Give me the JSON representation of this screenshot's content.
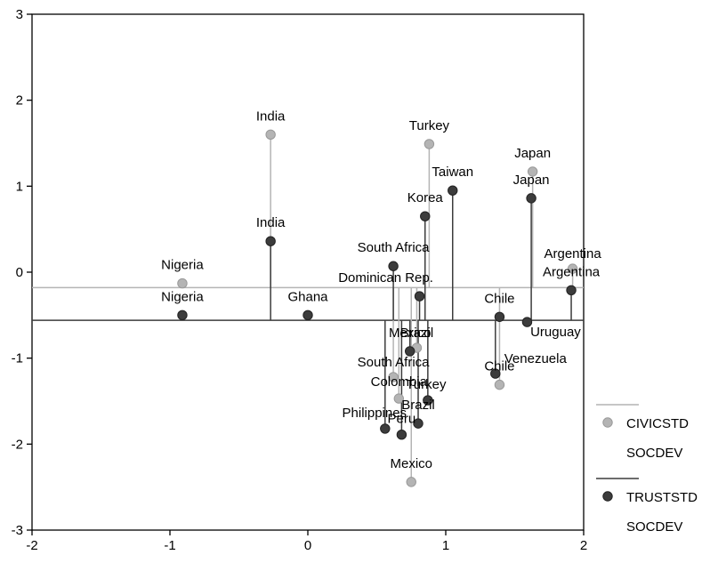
{
  "chart_data": {
    "type": "scatter",
    "title": "",
    "xlabel": "",
    "ylabel": "",
    "xlim": [
      -2,
      2
    ],
    "ylim": [
      -3,
      3
    ],
    "x_ticks": [
      -2,
      -1,
      0,
      1,
      2
    ],
    "y_ticks": [
      -3,
      -2,
      -1,
      0,
      1,
      2,
      3
    ],
    "x_tick_labels": [
      "-2",
      "-1",
      "0",
      "1",
      "2"
    ],
    "y_tick_labels": [
      "-3",
      "-2",
      "-1",
      "0",
      "1",
      "2",
      "3"
    ],
    "grid": false,
    "legend_position": "right",
    "series": [
      {
        "name": "CIVICSTD",
        "name2": "SOCDEV",
        "color": "#b4b4b4",
        "reference_y": -0.18,
        "points": [
          {
            "label": "India",
            "x": -0.27,
            "y": 1.6
          },
          {
            "label": "Nigeria",
            "x": -0.91,
            "y": -0.13
          },
          {
            "label": "Turkey",
            "x": 0.88,
            "y": 1.49
          },
          {
            "label": "Japan",
            "x": 1.63,
            "y": 1.17
          },
          {
            "label": "Argentina",
            "x": 1.92,
            "y": 0.04
          },
          {
            "label": "Brazil",
            "x": 0.79,
            "y": -0.88
          },
          {
            "label": "South Africa",
            "x": 0.62,
            "y": -1.22
          },
          {
            "label": "Colombia",
            "x": 0.66,
            "y": -1.47
          },
          {
            "label": "Chile",
            "x": 1.39,
            "y": -1.31
          },
          {
            "label": "Mexico",
            "x": 0.75,
            "y": -2.44
          }
        ]
      },
      {
        "name": "TRUSTSTD",
        "name2": "SOCDEV",
        "color": "#3c3c3c",
        "reference_y": -0.56,
        "points": [
          {
            "label": "India",
            "x": -0.27,
            "y": 0.36
          },
          {
            "label": "Nigeria",
            "x": -0.91,
            "y": -0.5
          },
          {
            "label": "Ghana",
            "x": 0.0,
            "y": -0.5
          },
          {
            "label": "South Africa",
            "x": 0.62,
            "y": 0.07
          },
          {
            "label": "Korea",
            "x": 0.85,
            "y": 0.65
          },
          {
            "label": "Taiwan",
            "x": 1.05,
            "y": 0.95
          },
          {
            "label": "Japan",
            "x": 1.62,
            "y": 0.86
          },
          {
            "label": "Argentina",
            "x": 1.91,
            "y": -0.21
          },
          {
            "label": "Dominican Rep.",
            "x": 0.81,
            "y": -0.28
          },
          {
            "label": "Chile",
            "x": 1.39,
            "y": -0.52
          },
          {
            "label": "Uruguay",
            "x": 1.59,
            "y": -0.58
          },
          {
            "label": "Mexico",
            "x": 0.74,
            "y": -0.92
          },
          {
            "label": "Venezuela",
            "x": 1.36,
            "y": -1.18
          },
          {
            "label": "Turkey",
            "x": 0.87,
            "y": -1.49
          },
          {
            "label": "Brazil",
            "x": 0.8,
            "y": -1.76
          },
          {
            "label": "Philippines",
            "x": 0.56,
            "y": -1.82
          },
          {
            "label": "Peru",
            "x": 0.68,
            "y": -1.89
          }
        ]
      }
    ]
  },
  "point_labels_visible": [
    {
      "text": "India",
      "series": 0
    },
    {
      "text": "Nigeria",
      "series": 0
    },
    {
      "text": "Turkey",
      "series": 0
    },
    {
      "text": "Japan",
      "series": 0
    },
    {
      "text": "Argentina",
      "series": 0
    },
    {
      "text": "Brazil",
      "series": 0
    },
    {
      "text": "South Africa",
      "series": 0
    },
    {
      "text": "Colombia",
      "series": 0
    },
    {
      "text": "Chile",
      "series": 0
    },
    {
      "text": "Mexico",
      "series": 0
    }
  ]
}
